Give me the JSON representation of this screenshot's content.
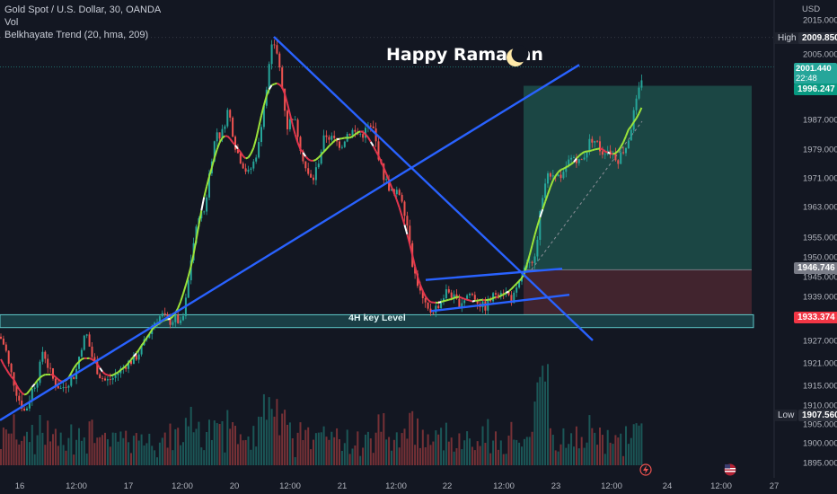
{
  "legend": {
    "symbol": "Gold Spot / U.S. Dollar, 30, OANDA",
    "volume": "Vol",
    "indicator": "Belkhayate Trend (20, hma, 209)"
  },
  "currency": "USD",
  "banner": "Happy Ramadan",
  "key_level_label": "4H key Level",
  "price_tags": {
    "high_label": "High",
    "high_value": "2009.850",
    "low_label": "Low",
    "low_value": "1907.560",
    "last_value": "2001.440",
    "countdown": "22:48",
    "target_value": "1996.247",
    "entry_value": "1946.746",
    "stop_value": "1933.374"
  },
  "colors": {
    "background": "#131722",
    "up": "#26a69a",
    "down": "#ef5350",
    "trendline": "#2962ff",
    "profit_zone": "#1d4f4a",
    "loss_zone": "#4a2730",
    "key_level": "#5fc9c9",
    "indicator_up": "#9be33a",
    "indicator_down": "#e2354d"
  },
  "chart_data": {
    "type": "candlestick",
    "symbol": "XAUUSD",
    "timeframe": "30",
    "ylim": [
      1892,
      2018
    ],
    "y_ticks": [
      "2015.000",
      "2005.000",
      "1987.000",
      "1979.000",
      "1971.000",
      "1963.000",
      "1955.000",
      "1950.000",
      "1945.000",
      "1939.000",
      "1927.000",
      "1921.000",
      "1915.000",
      "1910.000",
      "1905.000",
      "1900.000",
      "1895.000"
    ],
    "x_ticks": [
      "16",
      "12:00",
      "17",
      "12:00",
      "20",
      "12:00",
      "21",
      "12:00",
      "22",
      "12:00",
      "23",
      "12:00",
      "24",
      "12:00",
      "27"
    ],
    "close_path": [
      [
        0,
        1928
      ],
      [
        6,
        1925
      ],
      [
        10,
        1920
      ],
      [
        14,
        1917
      ],
      [
        20,
        1912
      ],
      [
        28,
        1908
      ],
      [
        36,
        1914
      ],
      [
        42,
        1917
      ],
      [
        46,
        1922
      ],
      [
        48,
        1925
      ],
      [
        52,
        1921
      ],
      [
        60,
        1916
      ],
      [
        68,
        1914
      ],
      [
        76,
        1916
      ],
      [
        84,
        1918
      ],
      [
        90,
        1925
      ],
      [
        96,
        1929
      ],
      [
        102,
        1923
      ],
      [
        110,
        1918
      ],
      [
        118,
        1916
      ],
      [
        126,
        1917
      ],
      [
        134,
        1919
      ],
      [
        142,
        1921
      ],
      [
        150,
        1922
      ],
      [
        158,
        1925
      ],
      [
        164,
        1928
      ],
      [
        172,
        1932
      ],
      [
        180,
        1934
      ],
      [
        188,
        1932
      ],
      [
        196,
        1933
      ],
      [
        202,
        1931
      ],
      [
        206,
        1936
      ],
      [
        210,
        1944
      ],
      [
        214,
        1952
      ],
      [
        218,
        1956
      ],
      [
        222,
        1962
      ],
      [
        226,
        1960
      ],
      [
        230,
        1966
      ],
      [
        234,
        1974
      ],
      [
        238,
        1980
      ],
      [
        242,
        1984
      ],
      [
        246,
        1982
      ],
      [
        250,
        1986
      ],
      [
        254,
        1990
      ],
      [
        258,
        1985
      ],
      [
        262,
        1980
      ],
      [
        266,
        1977
      ],
      [
        270,
        1975
      ],
      [
        276,
        1972
      ],
      [
        282,
        1975
      ],
      [
        288,
        1980
      ],
      [
        292,
        1988
      ],
      [
        296,
        1995
      ],
      [
        300,
        2002
      ],
      [
        304,
        2009
      ],
      [
        308,
        2006
      ],
      [
        312,
        2000
      ],
      [
        316,
        1992
      ],
      [
        320,
        1985
      ],
      [
        326,
        1988
      ],
      [
        330,
        1985
      ],
      [
        336,
        1978
      ],
      [
        342,
        1972
      ],
      [
        348,
        1970
      ],
      [
        354,
        1975
      ],
      [
        358,
        1979
      ],
      [
        362,
        1983
      ],
      [
        368,
        1982
      ],
      [
        374,
        1981
      ],
      [
        380,
        1980
      ],
      [
        386,
        1983
      ],
      [
        392,
        1984
      ],
      [
        398,
        1983
      ],
      [
        404,
        1983
      ],
      [
        410,
        1985
      ],
      [
        416,
        1984
      ],
      [
        420,
        1979
      ],
      [
        426,
        1972
      ],
      [
        432,
        1969
      ],
      [
        438,
        1966
      ],
      [
        444,
        1967
      ],
      [
        448,
        1965
      ],
      [
        452,
        1960
      ],
      [
        456,
        1955
      ],
      [
        460,
        1947
      ],
      [
        464,
        1944
      ],
      [
        468,
        1940
      ],
      [
        472,
        1937
      ],
      [
        476,
        1935
      ],
      [
        480,
        1935
      ],
      [
        486,
        1936
      ],
      [
        492,
        1938
      ],
      [
        498,
        1941
      ],
      [
        504,
        1939
      ],
      [
        510,
        1937
      ],
      [
        516,
        1938
      ],
      [
        522,
        1940
      ],
      [
        528,
        1939
      ],
      [
        534,
        1937
      ],
      [
        540,
        1936
      ],
      [
        546,
        1938
      ],
      [
        552,
        1940
      ],
      [
        558,
        1941
      ],
      [
        564,
        1940
      ],
      [
        570,
        1938
      ],
      [
        576,
        1941
      ],
      [
        582,
        1946
      ],
      [
        588,
        1948
      ],
      [
        592,
        1947
      ],
      [
        596,
        1952
      ],
      [
        600,
        1958
      ],
      [
        604,
        1966
      ],
      [
        608,
        1972
      ],
      [
        612,
        1970
      ],
      [
        618,
        1973
      ],
      [
        624,
        1970
      ],
      [
        628,
        1972
      ],
      [
        634,
        1976
      ],
      [
        640,
        1977
      ],
      [
        646,
        1975
      ],
      [
        652,
        1978
      ],
      [
        658,
        1982
      ],
      [
        664,
        1981
      ],
      [
        670,
        1978
      ],
      [
        676,
        1979
      ],
      [
        682,
        1978
      ],
      [
        688,
        1976
      ],
      [
        692,
        1978
      ],
      [
        698,
        1980
      ],
      [
        702,
        1984
      ],
      [
        706,
        1989
      ],
      [
        710,
        1993
      ],
      [
        714,
        1998
      ],
      [
        717,
        2001.44
      ]
    ],
    "trend_lines": [
      {
        "from": [
          0,
          1906
        ],
        "to": [
          645,
          2002
        ]
      },
      {
        "from": [
          305,
          2010
        ],
        "to": [
          660,
          1927
        ]
      },
      {
        "from": [
          474,
          1944
        ],
        "to": [
          626,
          1947
        ]
      },
      {
        "from": [
          480,
          1935
        ],
        "to": [
          634,
          1939.5
        ]
      }
    ],
    "key_level": {
      "label": "4H key Level",
      "top": 1934,
      "bottom": 1930.5
    },
    "position": {
      "entry": 1946.746,
      "target": 1996.247,
      "stop": 1933.374
    },
    "high": 2009.85,
    "low": 1907.56,
    "last": 2001.44
  }
}
